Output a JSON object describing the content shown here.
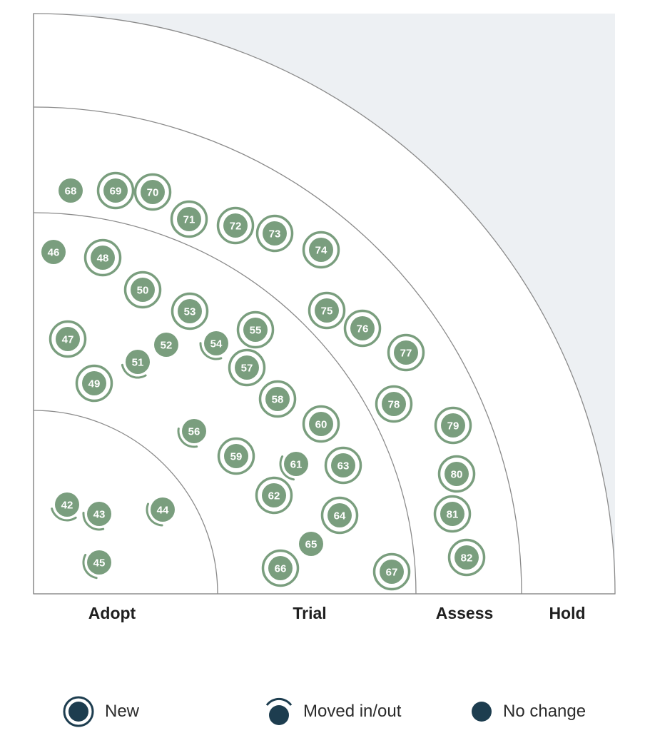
{
  "rings": [
    {
      "id": "adopt",
      "label": "Adopt"
    },
    {
      "id": "trial",
      "label": "Trial"
    },
    {
      "id": "assess",
      "label": "Assess"
    },
    {
      "id": "hold",
      "label": "Hold"
    }
  ],
  "colors": {
    "blip": "#7a9e7e",
    "ring_line": "#8a8a8a",
    "outer_fill": "#edf0f3",
    "legend_icon": "#1d3d4f"
  },
  "legend": [
    {
      "type": "new",
      "label": "New"
    },
    {
      "type": "moved",
      "label": "Moved in/out"
    },
    {
      "type": "nochange",
      "label": "No change"
    }
  ],
  "blips": [
    {
      "id": "42",
      "ring": "adopt",
      "status": "moved"
    },
    {
      "id": "43",
      "ring": "adopt",
      "status": "moved"
    },
    {
      "id": "44",
      "ring": "adopt",
      "status": "moved"
    },
    {
      "id": "45",
      "ring": "adopt",
      "status": "moved"
    },
    {
      "id": "46",
      "ring": "trial",
      "status": "nochange"
    },
    {
      "id": "47",
      "ring": "trial",
      "status": "new"
    },
    {
      "id": "48",
      "ring": "trial",
      "status": "new"
    },
    {
      "id": "49",
      "ring": "trial",
      "status": "new"
    },
    {
      "id": "50",
      "ring": "trial",
      "status": "new"
    },
    {
      "id": "51",
      "ring": "trial",
      "status": "moved"
    },
    {
      "id": "52",
      "ring": "trial",
      "status": "nochange"
    },
    {
      "id": "53",
      "ring": "trial",
      "status": "new"
    },
    {
      "id": "54",
      "ring": "trial",
      "status": "moved"
    },
    {
      "id": "55",
      "ring": "trial",
      "status": "new"
    },
    {
      "id": "56",
      "ring": "trial",
      "status": "moved"
    },
    {
      "id": "57",
      "ring": "trial",
      "status": "new"
    },
    {
      "id": "58",
      "ring": "trial",
      "status": "new"
    },
    {
      "id": "59",
      "ring": "trial",
      "status": "new"
    },
    {
      "id": "60",
      "ring": "trial",
      "status": "new"
    },
    {
      "id": "61",
      "ring": "trial",
      "status": "moved"
    },
    {
      "id": "62",
      "ring": "trial",
      "status": "new"
    },
    {
      "id": "63",
      "ring": "trial",
      "status": "new"
    },
    {
      "id": "64",
      "ring": "trial",
      "status": "new"
    },
    {
      "id": "65",
      "ring": "trial",
      "status": "nochange"
    },
    {
      "id": "66",
      "ring": "trial",
      "status": "new"
    },
    {
      "id": "67",
      "ring": "trial",
      "status": "new"
    },
    {
      "id": "68",
      "ring": "assess",
      "status": "nochange"
    },
    {
      "id": "69",
      "ring": "assess",
      "status": "new"
    },
    {
      "id": "70",
      "ring": "assess",
      "status": "new"
    },
    {
      "id": "71",
      "ring": "assess",
      "status": "new"
    },
    {
      "id": "72",
      "ring": "assess",
      "status": "new"
    },
    {
      "id": "73",
      "ring": "assess",
      "status": "new"
    },
    {
      "id": "74",
      "ring": "assess",
      "status": "new"
    },
    {
      "id": "75",
      "ring": "assess",
      "status": "new"
    },
    {
      "id": "76",
      "ring": "assess",
      "status": "new"
    },
    {
      "id": "77",
      "ring": "assess",
      "status": "new"
    },
    {
      "id": "78",
      "ring": "assess",
      "status": "new"
    },
    {
      "id": "79",
      "ring": "assess",
      "status": "new"
    },
    {
      "id": "80",
      "ring": "assess",
      "status": "new"
    },
    {
      "id": "81",
      "ring": "assess",
      "status": "new"
    },
    {
      "id": "82",
      "ring": "assess",
      "status": "new"
    }
  ]
}
